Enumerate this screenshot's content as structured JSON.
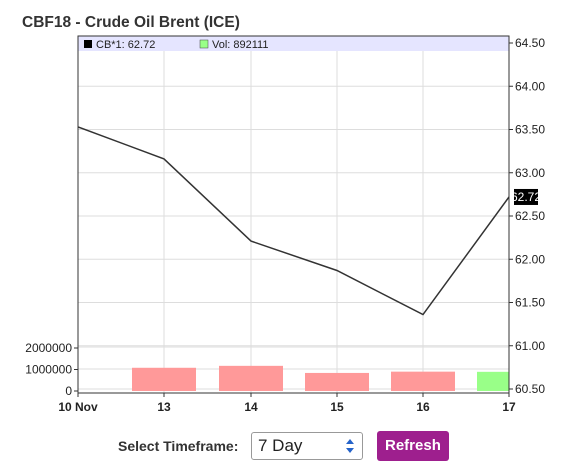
{
  "title": "CBF18 - Crude Oil Brent (ICE)",
  "legend": {
    "price_text": "CB*1: 62.72",
    "volume_text": "Vol: 892111"
  },
  "colors": {
    "price_line": "#333333",
    "volume_down": "#ff9999",
    "volume_up": "#99ff88",
    "legend_band": "#e5e5ff",
    "grid": "#dddddd",
    "last_price_bg": "#000000",
    "refresh_button": "#9e1f8e"
  },
  "chart_data": {
    "type": "line",
    "title": "CBF18 - Crude Oil Brent (ICE)",
    "x": [
      "10 Nov",
      "13",
      "14",
      "15",
      "16",
      "17"
    ],
    "series": [
      {
        "name": "CB*1",
        "values": [
          63.53,
          63.16,
          62.21,
          61.87,
          61.36,
          62.72
        ]
      }
    ],
    "volume": {
      "name": "Vol",
      "values": [
        null,
        1080000,
        1170000,
        840000,
        900000,
        892111
      ],
      "direction": [
        null,
        "down",
        "down",
        "down",
        "down",
        "up"
      ],
      "ylim": [
        0,
        2500000
      ],
      "y_ticks": [
        "2000000",
        "1000000",
        "0"
      ]
    },
    "ylim": [
      60.44,
      64.52
    ],
    "y_ticks": [
      "64.50",
      "64.00",
      "63.50",
      "63.00",
      "62.50",
      "62.00",
      "61.50",
      "61.00",
      "60.50"
    ],
    "y_tick_values": [
      64.5,
      64.0,
      63.5,
      63.0,
      62.5,
      62.0,
      61.5,
      61.0,
      60.5
    ],
    "last_price_label": "62.72",
    "grid": true
  },
  "controls": {
    "timeframe_label": "Select Timeframe:",
    "timeframe_value": "7 Day",
    "refresh_label": "Refresh"
  }
}
